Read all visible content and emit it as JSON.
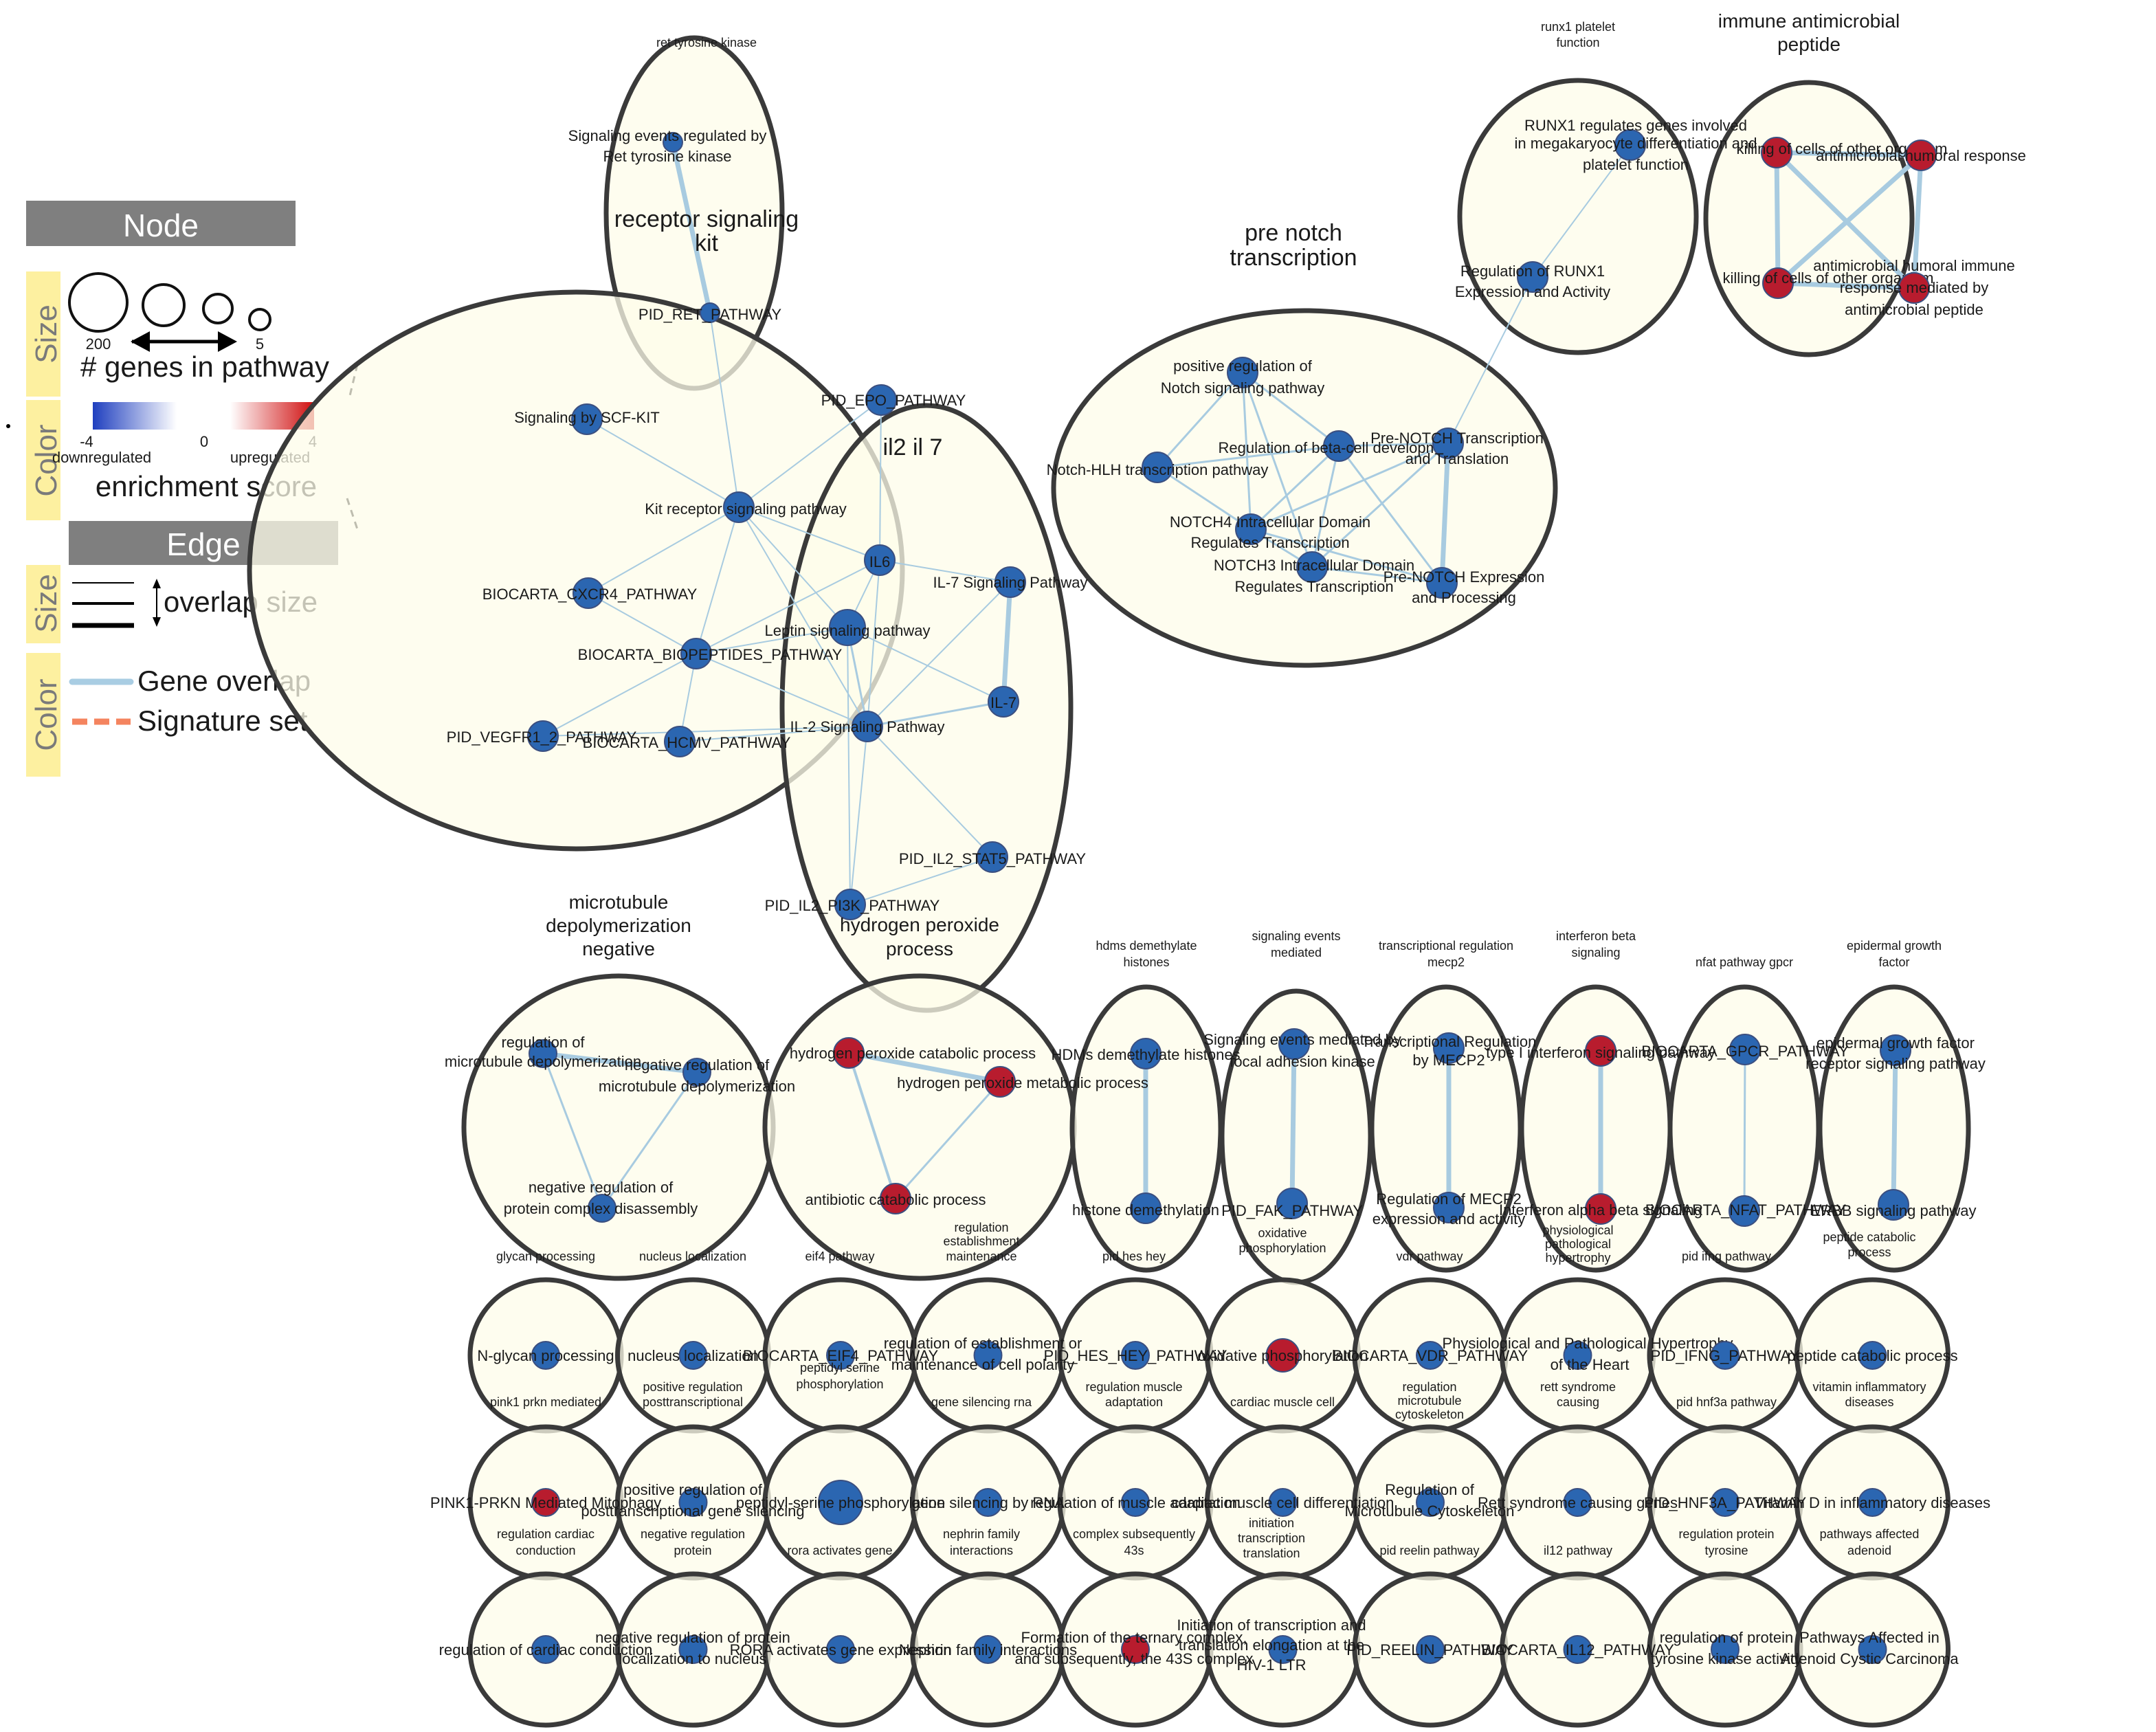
{
  "legend": {
    "node_header": "Node",
    "edge_header": "Edge",
    "size_label": "Size",
    "color_label": "Color",
    "size_max": "200",
    "size_min": "5",
    "genes_in_pathway": "# genes in pathway",
    "score_min": "-4",
    "score_mid": "0",
    "score_max": "4",
    "downregulated": "downregulated",
    "upregulated": "upregulated",
    "enrichment_score": "enrichment score",
    "overlap_size": "overlap size",
    "gene_overlap": "Gene overlap",
    "signature_set": "Signature set",
    "colors": {
      "down": "#1f3fbf",
      "up": "#d01010",
      "gene_overlap": "#a9cde3",
      "signature_set": "#f4845f",
      "header_bg": "#7f7f7f",
      "side_bg": "#fdf0a0"
    }
  },
  "colors": {
    "node_down": "#2b66b1",
    "node_up": "#b81c2e",
    "cluster_fill": "#fdfcea",
    "cluster_stroke": "#3a3a3a",
    "edge": "#a8cbe0"
  },
  "clusters": [
    {
      "id": "ret",
      "label": "ret tyrosine kinase",
      "size": "small"
    },
    {
      "id": "kit",
      "label": "receptor signaling kit",
      "size": "big"
    },
    {
      "id": "il2",
      "label": "il2 il 7",
      "size": "big"
    },
    {
      "id": "notch",
      "label": "pre notch transcription",
      "size": "big"
    },
    {
      "id": "runx1",
      "label": "runx1 platelet function",
      "size": "small"
    },
    {
      "id": "immune",
      "label": "immune antimicrobial peptide",
      "size": "med"
    },
    {
      "id": "microtubule",
      "label": "microtubule depolymerization negative",
      "size": "med"
    },
    {
      "id": "h2o2",
      "label": "hydrogen peroxide process",
      "size": "med"
    },
    {
      "id": "hdms",
      "label": "hdms demethylate histones",
      "size": "small"
    },
    {
      "id": "sigevents",
      "label": "signaling events mediated",
      "size": "small"
    },
    {
      "id": "mecp2",
      "label": "transcriptional regulation mecp2",
      "size": "small"
    },
    {
      "id": "ifnb",
      "label": "interferon beta signaling",
      "size": "small"
    },
    {
      "id": "nfat",
      "label": "nfat pathway gpcr",
      "size": "small"
    },
    {
      "id": "egf",
      "label": "epidermal growth factor",
      "size": "small"
    },
    {
      "id": "glycan",
      "label": "glycan processing",
      "size": "tiny"
    },
    {
      "id": "nucleus",
      "label": "nucleus localization",
      "size": "tiny"
    },
    {
      "id": "eif4",
      "label": "eif4 pathway",
      "size": "tiny"
    },
    {
      "id": "regest",
      "label": "regulation establishment maintenance",
      "size": "tiny"
    },
    {
      "id": "hes",
      "label": "pid hes hey",
      "size": "tiny"
    },
    {
      "id": "oxphos",
      "label": "oxidative phosphorylation",
      "size": "tiny"
    },
    {
      "id": "vdr",
      "label": "vdr pathway",
      "size": "tiny"
    },
    {
      "id": "physio",
      "label": "physiological pathological hypertrophy",
      "size": "tiny"
    },
    {
      "id": "ifng",
      "label": "pid ifng pathway",
      "size": "tiny"
    },
    {
      "id": "peptide",
      "label": "peptide catabolic process",
      "size": "tiny"
    },
    {
      "id": "pink1",
      "label": "pink1 prkn mediated",
      "size": "tiny"
    },
    {
      "id": "posttx",
      "label": "positive regulation posttranscriptional",
      "size": "tiny"
    },
    {
      "id": "peptidyl",
      "label": "peptidyl serine phosphorylation",
      "size": "tiny"
    },
    {
      "id": "gsilence",
      "label": "gene silencing rna",
      "size": "tiny"
    },
    {
      "id": "muscle",
      "label": "regulation muscle adaptation",
      "size": "tiny"
    },
    {
      "id": "cardiac",
      "label": "cardiac muscle cell",
      "size": "tiny"
    },
    {
      "id": "microcyto",
      "label": "regulation microtubule cytoskeleton",
      "size": "tiny"
    },
    {
      "id": "rett",
      "label": "rett syndrome causing",
      "size": "tiny"
    },
    {
      "id": "hnf3a",
      "label": "pid hnf3a pathway",
      "size": "tiny"
    },
    {
      "id": "vitamin",
      "label": "vitamin inflammatory diseases",
      "size": "tiny"
    },
    {
      "id": "cardcond",
      "label": "regulation cardiac conduction",
      "size": "tiny"
    },
    {
      "id": "negprot",
      "label": "negative regulation protein",
      "size": "tiny"
    },
    {
      "id": "rora",
      "label": "rora activates gene",
      "size": "tiny"
    },
    {
      "id": "nephrin",
      "label": "nephrin family interactions",
      "size": "tiny"
    },
    {
      "id": "complex43",
      "label": "complex subsequently 43s",
      "size": "tiny"
    },
    {
      "id": "initiation",
      "label": "initiation transcription translation",
      "size": "tiny"
    },
    {
      "id": "reelin",
      "label": "pid reelin pathway",
      "size": "tiny"
    },
    {
      "id": "il12",
      "label": "il12 pathway",
      "size": "tiny"
    },
    {
      "id": "tyrosine",
      "label": "regulation protein tyrosine",
      "size": "tiny"
    },
    {
      "id": "adenoid",
      "label": "pathways affected adenoid",
      "size": "tiny"
    }
  ],
  "nodes": [
    {
      "id": "n_ret",
      "label": "Signaling events regulated by Ret tyrosine kinase",
      "reg": "down"
    },
    {
      "id": "n_pidret",
      "label": "PID_RET_PATHWAY",
      "reg": "down"
    },
    {
      "id": "n_scfkit",
      "label": "Signaling by SCF-KIT",
      "reg": "down"
    },
    {
      "id": "n_epo",
      "label": "PID_EPO_PATHWAY",
      "reg": "down"
    },
    {
      "id": "n_kit",
      "label": "Kit receptor signaling pathway",
      "reg": "down"
    },
    {
      "id": "n_cxcr4",
      "label": "BIOCARTA_CXCR4_PATHWAY",
      "reg": "down"
    },
    {
      "id": "n_biopep",
      "label": "BIOCARTA_BIOPEPTIDES_PATHWAY",
      "reg": "down"
    },
    {
      "id": "n_vegfr",
      "label": "PID_VEGFR1_2_PATHWAY",
      "reg": "down"
    },
    {
      "id": "n_hcmv",
      "label": "BIOCARTA_HCMV_PATHWAY",
      "reg": "down"
    },
    {
      "id": "n_il6",
      "label": "IL6",
      "reg": "down"
    },
    {
      "id": "n_il7sig",
      "label": "IL-7 Signaling Pathway",
      "reg": "down"
    },
    {
      "id": "n_leptin",
      "label": "Leptin signaling pathway",
      "reg": "down"
    },
    {
      "id": "n_il7",
      "label": "IL-7",
      "reg": "down"
    },
    {
      "id": "n_il2sig",
      "label": "IL-2 Signaling Pathway",
      "reg": "down"
    },
    {
      "id": "n_stat5",
      "label": "PID_IL2_STAT5_PATHWAY",
      "reg": "down"
    },
    {
      "id": "n_pi3k",
      "label": "PID_IL2_PI3K_PATHWAY",
      "reg": "down"
    },
    {
      "id": "n_notchpos",
      "label": "positive regulation of Notch signaling pathway",
      "reg": "down"
    },
    {
      "id": "n_betacell",
      "label": "Regulation of beta-cell development",
      "reg": "down"
    },
    {
      "id": "n_prenotch",
      "label": "Pre-NOTCH Transcription and Translation",
      "reg": "down"
    },
    {
      "id": "n_hlh",
      "label": "Notch-HLH transcription pathway",
      "reg": "down"
    },
    {
      "id": "n_notch4",
      "label": "NOTCH4 Intracellular Domain Regulates Transcription",
      "reg": "down"
    },
    {
      "id": "n_notch3",
      "label": "NOTCH3 Intracellular Domain Regulates Transcription",
      "reg": "down"
    },
    {
      "id": "n_prenotchexp",
      "label": "Pre-NOTCH Expression and Processing",
      "reg": "down"
    },
    {
      "id": "n_runx1a",
      "label": "RUNX1 regulates genes involved in megakaryocyte differentiation and platelet function",
      "reg": "down"
    },
    {
      "id": "n_runx1b",
      "label": "Regulation of RUNX1 Expression and Activity",
      "reg": "down"
    },
    {
      "id": "n_killing",
      "label": "killing of cells of other organism",
      "reg": "up"
    },
    {
      "id": "n_amhumoral",
      "label": "antimicrobial humoral response",
      "reg": "up"
    },
    {
      "id": "n_killing2",
      "label": "killing of cells of other organism",
      "reg": "up"
    },
    {
      "id": "n_amimmune",
      "label": "antimicrobial humoral immune response mediated by antimicrobial peptide",
      "reg": "up"
    },
    {
      "id": "n_mtdepol",
      "label": "regulation of microtubule depolymerization",
      "reg": "down"
    },
    {
      "id": "n_negmt",
      "label": "negative regulation of microtubule depolymerization",
      "reg": "down"
    },
    {
      "id": "n_negcomplex",
      "label": "negative regulation of protein complex disassembly",
      "reg": "down"
    },
    {
      "id": "n_h2o2cat",
      "label": "hydrogen peroxide catabolic process",
      "reg": "up"
    },
    {
      "id": "n_h2o2met",
      "label": "hydrogen peroxide metabolic process",
      "reg": "up"
    },
    {
      "id": "n_antibiotic",
      "label": "antibiotic catabolic process",
      "reg": "up"
    },
    {
      "id": "n_hdms",
      "label": "HDMs demethylate histones",
      "reg": "down"
    },
    {
      "id": "n_histone",
      "label": "histone demethylation",
      "reg": "down"
    },
    {
      "id": "n_focal",
      "label": "Signaling events mediated by focal adhesion kinase",
      "reg": "down"
    },
    {
      "id": "n_fak",
      "label": "PID_FAK_PATHWAY",
      "reg": "down"
    },
    {
      "id": "n_mecp2tx",
      "label": "Transcriptional Regulation by MECP2",
      "reg": "down"
    },
    {
      "id": "n_mecp2reg",
      "label": "Regulation of MECP2 expression and activity",
      "reg": "down"
    },
    {
      "id": "n_ifnb",
      "label": "type I interferon signaling pathway",
      "reg": "up"
    },
    {
      "id": "n_ifna",
      "label": "Interferon alpha beta signaling",
      "reg": "up"
    },
    {
      "id": "n_gpcr",
      "label": "BIOCARTA_GPCR_PATHWAY",
      "reg": "down"
    },
    {
      "id": "n_nfat",
      "label": "BIOCARTA_NFAT_PATHWAY",
      "reg": "down"
    },
    {
      "id": "n_egfr",
      "label": "epidermal growth factor receptor signaling pathway",
      "reg": "down"
    },
    {
      "id": "n_erbb",
      "label": "ERBB signaling pathway",
      "reg": "down"
    },
    {
      "id": "t_glycan",
      "label": "N-glycan processing",
      "reg": "down"
    },
    {
      "id": "t_nucleus",
      "label": "nucleus localization",
      "reg": "down"
    },
    {
      "id": "t_eif4",
      "label": "BIOCARTA_EIF4_PATHWAY",
      "reg": "down"
    },
    {
      "id": "t_regest",
      "label": "regulation of establishment or maintenance of cell polarity",
      "reg": "down"
    },
    {
      "id": "t_hes",
      "label": "PID_HES_HEY_PATHWAY",
      "reg": "down"
    },
    {
      "id": "t_oxphos",
      "label": "oxidative phosphorylation",
      "reg": "up"
    },
    {
      "id": "t_vdr",
      "label": "BIOCARTA_VDR_PATHWAY",
      "reg": "down"
    },
    {
      "id": "t_physio",
      "label": "Physiological and Pathological Hypertrophy  of the Heart",
      "reg": "down"
    },
    {
      "id": "t_ifng",
      "label": "PID_IFNG_PATHWAY",
      "reg": "down"
    },
    {
      "id": "t_peptide",
      "label": "peptide catabolic process",
      "reg": "down"
    },
    {
      "id": "t_pink1",
      "label": "PINK1-PRKN Mediated Mitophagy",
      "reg": "up"
    },
    {
      "id": "t_posttx",
      "label": "positive regulation of posttranscriptional gene silencing",
      "reg": "down"
    },
    {
      "id": "t_peptidyl",
      "label": "peptidyl-serine phosphorylation",
      "reg": "down"
    },
    {
      "id": "t_gsilence",
      "label": "gene silencing by RNA",
      "reg": "down"
    },
    {
      "id": "t_muscle",
      "label": "regulation of muscle adaptation",
      "reg": "down"
    },
    {
      "id": "t_cardiac",
      "label": "cardiac muscle cell differentiation",
      "reg": "down"
    },
    {
      "id": "t_microcyto",
      "label": "Regulation of Microtubule Cytoskeleton",
      "reg": "down"
    },
    {
      "id": "t_rett",
      "label": "Rett syndrome causing genes",
      "reg": "down"
    },
    {
      "id": "t_hnf3a",
      "label": "PID_HNF3A_PATHWAY",
      "reg": "down"
    },
    {
      "id": "t_vitamin",
      "label": "Vitamin D in inflammatory diseases",
      "reg": "down"
    },
    {
      "id": "t_cardcond",
      "label": "regulation of cardiac conduction",
      "reg": "down"
    },
    {
      "id": "t_negprot",
      "label": "negative regulation of protein localization to nucleus",
      "reg": "down"
    },
    {
      "id": "t_rora",
      "label": "RORA activates gene expression",
      "reg": "down"
    },
    {
      "id": "t_nephrin",
      "label": "Nephrin family interactions",
      "reg": "down"
    },
    {
      "id": "t_complex43",
      "label": "Formation of the ternary complex, and subsequently, the 43S complex",
      "reg": "up"
    },
    {
      "id": "t_initiation",
      "label": "Initiation of transcription and translation elongation at the HIV-1 LTR",
      "reg": "down"
    },
    {
      "id": "t_reelin",
      "label": "PID_REELIN_PATHWAY",
      "reg": "down"
    },
    {
      "id": "t_il12",
      "label": "BIOCARTA_IL12_PATHWAY",
      "reg": "down"
    },
    {
      "id": "t_tyrosine",
      "label": "regulation of protein tyrosine kinase activity",
      "reg": "down"
    },
    {
      "id": "t_adenoid",
      "label": "Pathways Affected in Adenoid Cystic Carcinoma",
      "reg": "down"
    }
  ]
}
